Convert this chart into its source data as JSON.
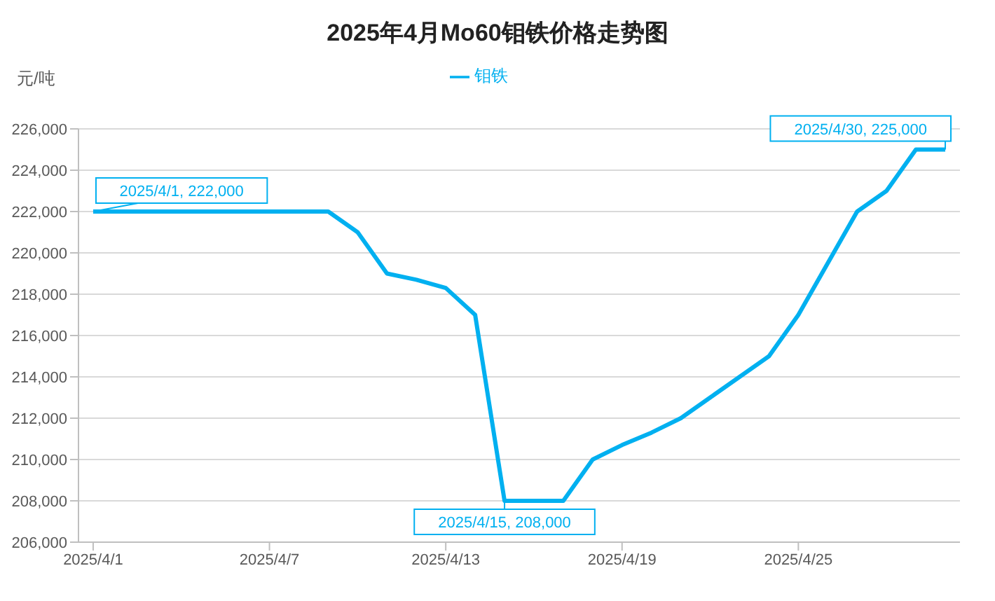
{
  "chart_data": {
    "type": "line",
    "title": "2025年4月Mo60钼铁价格走势图",
    "ylabel": "元/吨",
    "categories": [
      "2025/4/1",
      null,
      null,
      null,
      null,
      null,
      "2025/4/7",
      null,
      null,
      null,
      null,
      null,
      "2025/4/13",
      null,
      null,
      null,
      null,
      null,
      "2025/4/19",
      null,
      null,
      null,
      null,
      null,
      "2025/4/25",
      null,
      null,
      null,
      null,
      null
    ],
    "series": [
      {
        "name": "钼铁",
        "color": "#00b0f0",
        "values": [
          222000,
          222000,
          222000,
          222000,
          222000,
          222000,
          222000,
          222000,
          222000,
          221000,
          219000,
          218700,
          218300,
          217000,
          208000,
          208000,
          208000,
          210000,
          210700,
          211300,
          212000,
          213000,
          214000,
          215000,
          217000,
          219500,
          222000,
          223000,
          225000,
          225000
        ],
        "value_labels": [
          "2025/4/1, 222,000",
          null,
          null,
          null,
          null,
          null,
          null,
          null,
          null,
          null,
          null,
          null,
          null,
          null,
          "2025/4/15, 208,000",
          null,
          null,
          null,
          null,
          null,
          null,
          null,
          null,
          null,
          null,
          null,
          null,
          null,
          null,
          "2025/4/30, 225,000"
        ]
      }
    ],
    "ylim": [
      206000,
      226000
    ],
    "yticks": [
      {
        "value": 206000,
        "label": "206,000"
      },
      {
        "value": 208000,
        "label": "208,000"
      },
      {
        "value": 210000,
        "label": "210,000"
      },
      {
        "value": 212000,
        "label": "212,000"
      },
      {
        "value": 214000,
        "label": "214,000"
      },
      {
        "value": 216000,
        "label": "216,000"
      },
      {
        "value": 218000,
        "label": "218,000"
      },
      {
        "value": 220000,
        "label": "220,000"
      },
      {
        "value": 222000,
        "label": "222,000"
      },
      {
        "value": 224000,
        "label": "224,000"
      },
      {
        "value": 226000,
        "label": "226,000"
      }
    ],
    "grid": "y",
    "legend": "top",
    "marker": "none",
    "line_style": "solid"
  }
}
